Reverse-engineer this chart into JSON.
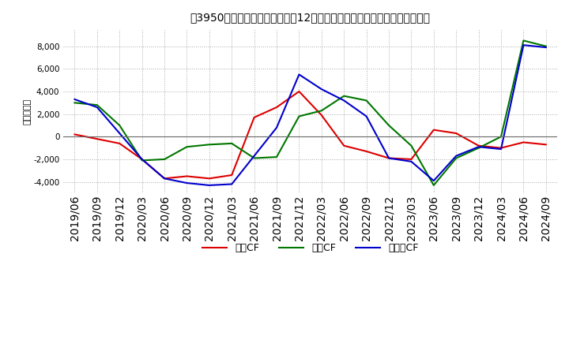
{
  "title": "［3950］　キャッシュフローの12か月移動合計の対前年同期増減額の推移",
  "ylabel": "（百万円）",
  "background_color": "#ffffff",
  "plot_bg_color": "#ffffff",
  "grid_color": "#aaaaaa",
  "x_labels": [
    "2019/06",
    "2019/09",
    "2019/12",
    "2020/03",
    "2020/06",
    "2020/09",
    "2020/12",
    "2021/03",
    "2021/06",
    "2021/09",
    "2021/12",
    "2022/03",
    "2022/06",
    "2022/09",
    "2022/12",
    "2023/03",
    "2023/06",
    "2023/09",
    "2023/12",
    "2024/03",
    "2024/06",
    "2024/09"
  ],
  "ei_CF": [
    200,
    -200,
    -600,
    -2000,
    -3700,
    -3500,
    -3700,
    -3400,
    1700,
    2600,
    4000,
    1900,
    -800,
    -1300,
    -1900,
    -2000,
    600,
    300,
    -800,
    -1000,
    -500,
    -700
  ],
  "to_CF": [
    3000,
    2800,
    1000,
    -2100,
    -2000,
    -900,
    -700,
    -600,
    -1900,
    -1800,
    1800,
    2300,
    3600,
    3200,
    1000,
    -800,
    -4300,
    -1900,
    -1000,
    0,
    8500,
    8000
  ],
  "fr_CF": [
    3300,
    2600,
    300,
    -2000,
    -3700,
    -4100,
    -4300,
    -4200,
    -1700,
    800,
    5500,
    4200,
    3200,
    1800,
    -1900,
    -2200,
    -3900,
    -1700,
    -900,
    -1100,
    8100,
    7900
  ],
  "ei_color": "#dd0000",
  "to_color": "#007700",
  "fr_color": "#0000cc",
  "ei_label": "営業CF",
  "to_label": "投資CF",
  "fr_label": "フリーCF",
  "ylim": [
    -5000,
    9500
  ],
  "yticks": [
    -4000,
    -2000,
    0,
    2000,
    4000,
    6000,
    8000
  ],
  "title_fontsize": 11,
  "axis_fontsize": 8,
  "tick_fontsize": 7.5
}
